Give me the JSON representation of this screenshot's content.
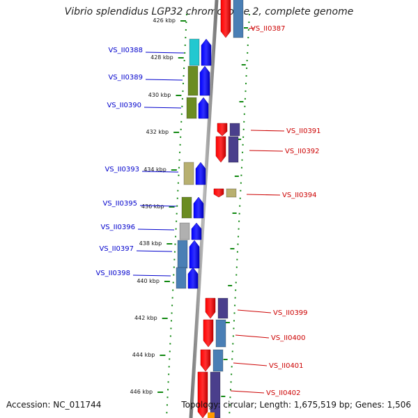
{
  "title": "Vibrio splendidus LGP32 chromosome 2, complete genome",
  "footer": {
    "accession": "Accession: NC_011744",
    "topology": "Topology: circular; Length: 1,675,519 bp; Genes: 1,506"
  },
  "colors": {
    "forward_label": "#0000cc",
    "reverse_label": "#cc0000",
    "forward_gene": "#0000ee",
    "reverse_gene": "#ee0000",
    "tick": "#118811",
    "backbone": "#888888"
  },
  "ruler": {
    "ticks": [
      {
        "label": "426 kbp"
      },
      {
        "label": "428 kbp"
      },
      {
        "label": "430 kbp"
      },
      {
        "label": "432 kbp"
      },
      {
        "label": "434 kbp"
      },
      {
        "label": "436 kbp"
      },
      {
        "label": "438 kbp"
      },
      {
        "label": "440 kbp"
      },
      {
        "label": "442 kbp"
      },
      {
        "label": "444 kbp"
      },
      {
        "label": "446 kbp"
      }
    ]
  },
  "genes": [
    {
      "name": "VS_II0387",
      "strand": "reverse"
    },
    {
      "name": "VS_II0388",
      "strand": "forward"
    },
    {
      "name": "VS_II0389",
      "strand": "forward"
    },
    {
      "name": "VS_II0390",
      "strand": "forward"
    },
    {
      "name": "VS_II0391",
      "strand": "reverse"
    },
    {
      "name": "VS_II0392",
      "strand": "reverse"
    },
    {
      "name": "VS_II0393",
      "strand": "forward"
    },
    {
      "name": "VS_II0394",
      "strand": "reverse"
    },
    {
      "name": "VS_II0395",
      "strand": "forward"
    },
    {
      "name": "VS_II0396",
      "strand": "forward"
    },
    {
      "name": "VS_II0397",
      "strand": "forward"
    },
    {
      "name": "VS_II0398",
      "strand": "forward"
    },
    {
      "name": "VS_II0399",
      "strand": "reverse"
    },
    {
      "name": "VS_II0400",
      "strand": "reverse"
    },
    {
      "name": "VS_II0401",
      "strand": "reverse"
    },
    {
      "name": "VS_II0402",
      "strand": "reverse"
    }
  ]
}
